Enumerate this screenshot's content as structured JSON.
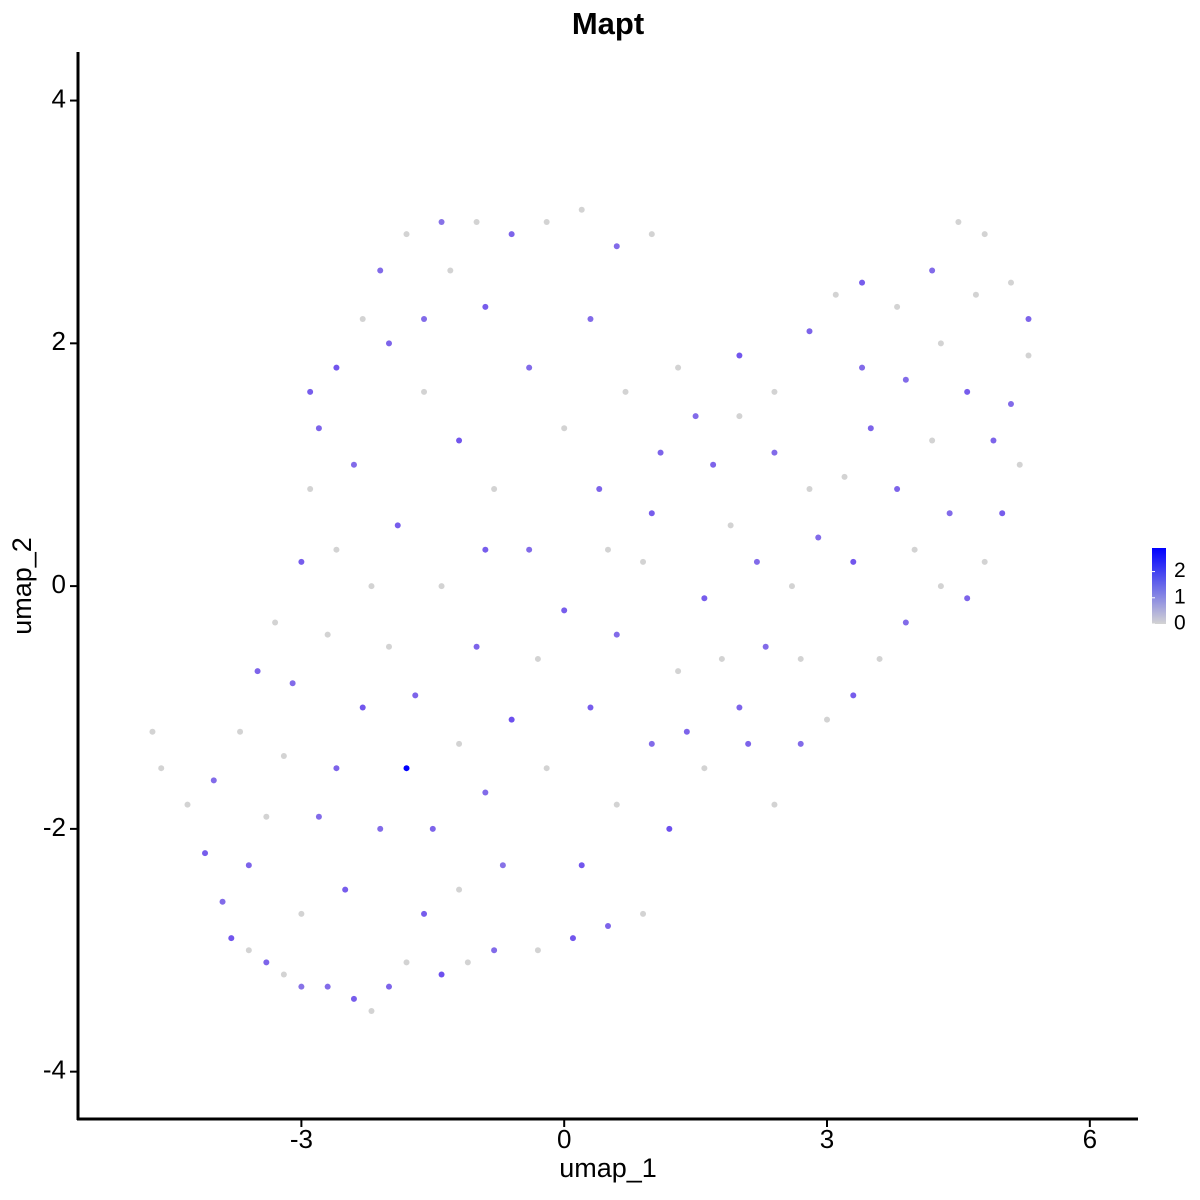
{
  "chart_data": {
    "type": "scatter",
    "title": "Mapt",
    "x_label": "umap_1",
    "y_label": "umap_2",
    "xlim": [
      -5.55,
      6.55
    ],
    "ylim": [
      -4.39,
      4.4
    ],
    "xticks": [
      -3,
      0,
      3,
      6
    ],
    "yticks": [
      -4,
      -2,
      0,
      2,
      4
    ],
    "low_color": "#d3d3d3",
    "high_color": "#0000ff",
    "clim": [
      0,
      2.9
    ],
    "cticks": [
      0,
      1,
      2
    ],
    "x": [
      -4.7,
      -4.6,
      -4.3,
      -4.1,
      -3.9,
      -3.8,
      -3.6,
      -3.4,
      -3.2,
      -3.0,
      -2.7,
      -2.4,
      -2.2,
      -2.0,
      -1.8,
      -1.4,
      -1.1,
      -0.8,
      -0.3,
      0.1,
      0.5,
      0.9,
      -4.0,
      -3.7,
      -3.5,
      -3.3,
      -3.0,
      -2.9,
      -2.8,
      -2.6,
      -2.3,
      -2.1,
      -1.8,
      -1.4,
      -1.0,
      -0.6,
      -0.2,
      0.2,
      0.6,
      1.0,
      -2.5,
      -2.8,
      -3.2,
      -2.3,
      -2.0,
      -1.8,
      -1.5,
      -1.2,
      -0.9,
      -0.6,
      -0.3,
      0.0,
      -0.4,
      -0.8,
      -1.2,
      -1.6,
      -2.0,
      -2.4,
      -2.6,
      -1.9,
      -1.4,
      -1.0,
      -0.7,
      -0.2,
      0.3,
      0.6,
      0.9,
      0.4,
      0.0,
      -0.4,
      -0.9,
      -1.3,
      0.3,
      0.7,
      1.1,
      0.2,
      0.6,
      1.0,
      1.3,
      1.6,
      1.9,
      1.5,
      1.2,
      1.6,
      2.0,
      2.3,
      2.6,
      -3.6,
      -3.0,
      -2.1,
      -1.6,
      -3.4,
      -2.6,
      -1.2,
      -3.1,
      -2.7,
      -1.7,
      -2.2,
      -0.9,
      -1.6,
      -2.9,
      2.0,
      2.4,
      2.8,
      3.1,
      3.4,
      3.8,
      4.2,
      4.5,
      4.8,
      5.1,
      5.3,
      5.3,
      5.1,
      5.2,
      5.0,
      4.8,
      4.6,
      4.3,
      3.9,
      3.6,
      3.3,
      3.0,
      2.7,
      2.4,
      2.1,
      2.9,
      3.2,
      3.5,
      3.9,
      4.3,
      4.6,
      4.2,
      3.8,
      4.4,
      4.0,
      3.3,
      2.8,
      2.4,
      2.0,
      1.7,
      2.2,
      2.7,
      3.4,
      4.7,
      4.9,
      1.3,
      1.0,
      0.5,
      1.4,
      1.8
    ],
    "y": [
      -1.2,
      -1.5,
      -1.8,
      -2.2,
      -2.6,
      -2.9,
      -3.0,
      -3.1,
      -3.2,
      -3.3,
      -3.3,
      -3.4,
      -3.5,
      -3.3,
      -3.1,
      -3.2,
      -3.1,
      -3.0,
      -3.0,
      -2.9,
      -2.8,
      -2.7,
      -1.6,
      -1.2,
      -0.7,
      -0.3,
      0.2,
      0.8,
      1.3,
      1.8,
      2.2,
      2.6,
      2.9,
      3.0,
      3.0,
      2.9,
      3.0,
      3.1,
      2.8,
      2.9,
      -2.5,
      -1.9,
      -1.4,
      -1.0,
      -0.5,
      -1.5,
      -2.0,
      -2.5,
      -1.7,
      -1.1,
      -0.6,
      -0.2,
      0.3,
      0.8,
      1.2,
      1.6,
      2.0,
      1.0,
      0.3,
      0.5,
      0.0,
      -0.5,
      -2.3,
      -1.5,
      -1.0,
      -0.4,
      0.2,
      0.8,
      1.3,
      1.8,
      2.3,
      2.6,
      2.2,
      1.6,
      1.1,
      -2.3,
      -1.8,
      -1.3,
      -0.7,
      -0.1,
      0.5,
      1.4,
      -2.0,
      -1.5,
      -1.0,
      -0.5,
      0.0,
      -2.3,
      -2.7,
      -2.0,
      -2.7,
      -1.9,
      -1.5,
      -1.3,
      -0.8,
      -0.4,
      -0.9,
      0.0,
      0.3,
      2.2,
      1.6,
      1.9,
      1.6,
      2.1,
      2.4,
      2.5,
      2.3,
      2.6,
      3.0,
      2.9,
      2.5,
      2.2,
      1.9,
      1.5,
      1.0,
      0.6,
      0.2,
      -0.1,
      0.0,
      -0.3,
      -0.6,
      -0.9,
      -1.1,
      -1.3,
      -1.8,
      -1.3,
      0.4,
      0.9,
      1.3,
      1.7,
      2.0,
      1.6,
      1.2,
      0.8,
      0.6,
      0.3,
      0.2,
      0.8,
      1.1,
      1.4,
      1.0,
      0.2,
      -0.6,
      1.8,
      2.4,
      1.2,
      1.8,
      0.6,
      0.3,
      -1.2,
      -0.6
    ],
    "values": [
      0,
      0,
      0,
      1.4,
      1.2,
      1.5,
      0,
      1.3,
      0,
      1.1,
      1.2,
      1.4,
      0,
      1.3,
      0,
      1.6,
      0,
      1.2,
      0,
      1.5,
      1.3,
      0,
      1.2,
      0,
      1.3,
      0,
      1.4,
      0,
      1.3,
      1.5,
      0,
      1.2,
      0,
      1.1,
      0,
      1.3,
      0,
      0,
      1.2,
      0,
      1.4,
      1.2,
      0,
      1.5,
      0,
      2.9,
      1.3,
      0,
      1.2,
      1.6,
      0,
      1.4,
      1.2,
      0,
      1.5,
      0,
      1.3,
      1.2,
      0,
      1.4,
      0,
      1.3,
      1.1,
      0,
      1.4,
      1.2,
      0,
      1.3,
      0,
      1.2,
      1.4,
      0,
      1.2,
      0,
      1.3,
      1.5,
      0,
      1.2,
      0,
      1.4,
      0,
      1.2,
      1.6,
      0,
      1.3,
      1.2,
      0,
      1.3,
      0,
      1.2,
      1.4,
      0,
      1.3,
      0,
      1.2,
      0,
      1.3,
      0,
      1.4,
      1.2,
      1.4,
      1.5,
      0,
      1.3,
      0,
      1.4,
      0,
      1.2,
      0,
      0,
      0,
      1.3,
      0,
      1.2,
      0,
      1.4,
      0,
      1.3,
      0,
      1.2,
      0,
      1.4,
      0,
      1.2,
      0,
      1.3,
      1.2,
      0,
      1.3,
      1.2,
      0,
      1.4,
      0,
      1.3,
      1.2,
      0,
      1.5,
      0,
      1.2,
      0,
      1.3,
      1.2,
      0,
      1.2,
      0,
      1.3,
      0,
      1.4,
      0,
      1.3,
      0
    ]
  }
}
